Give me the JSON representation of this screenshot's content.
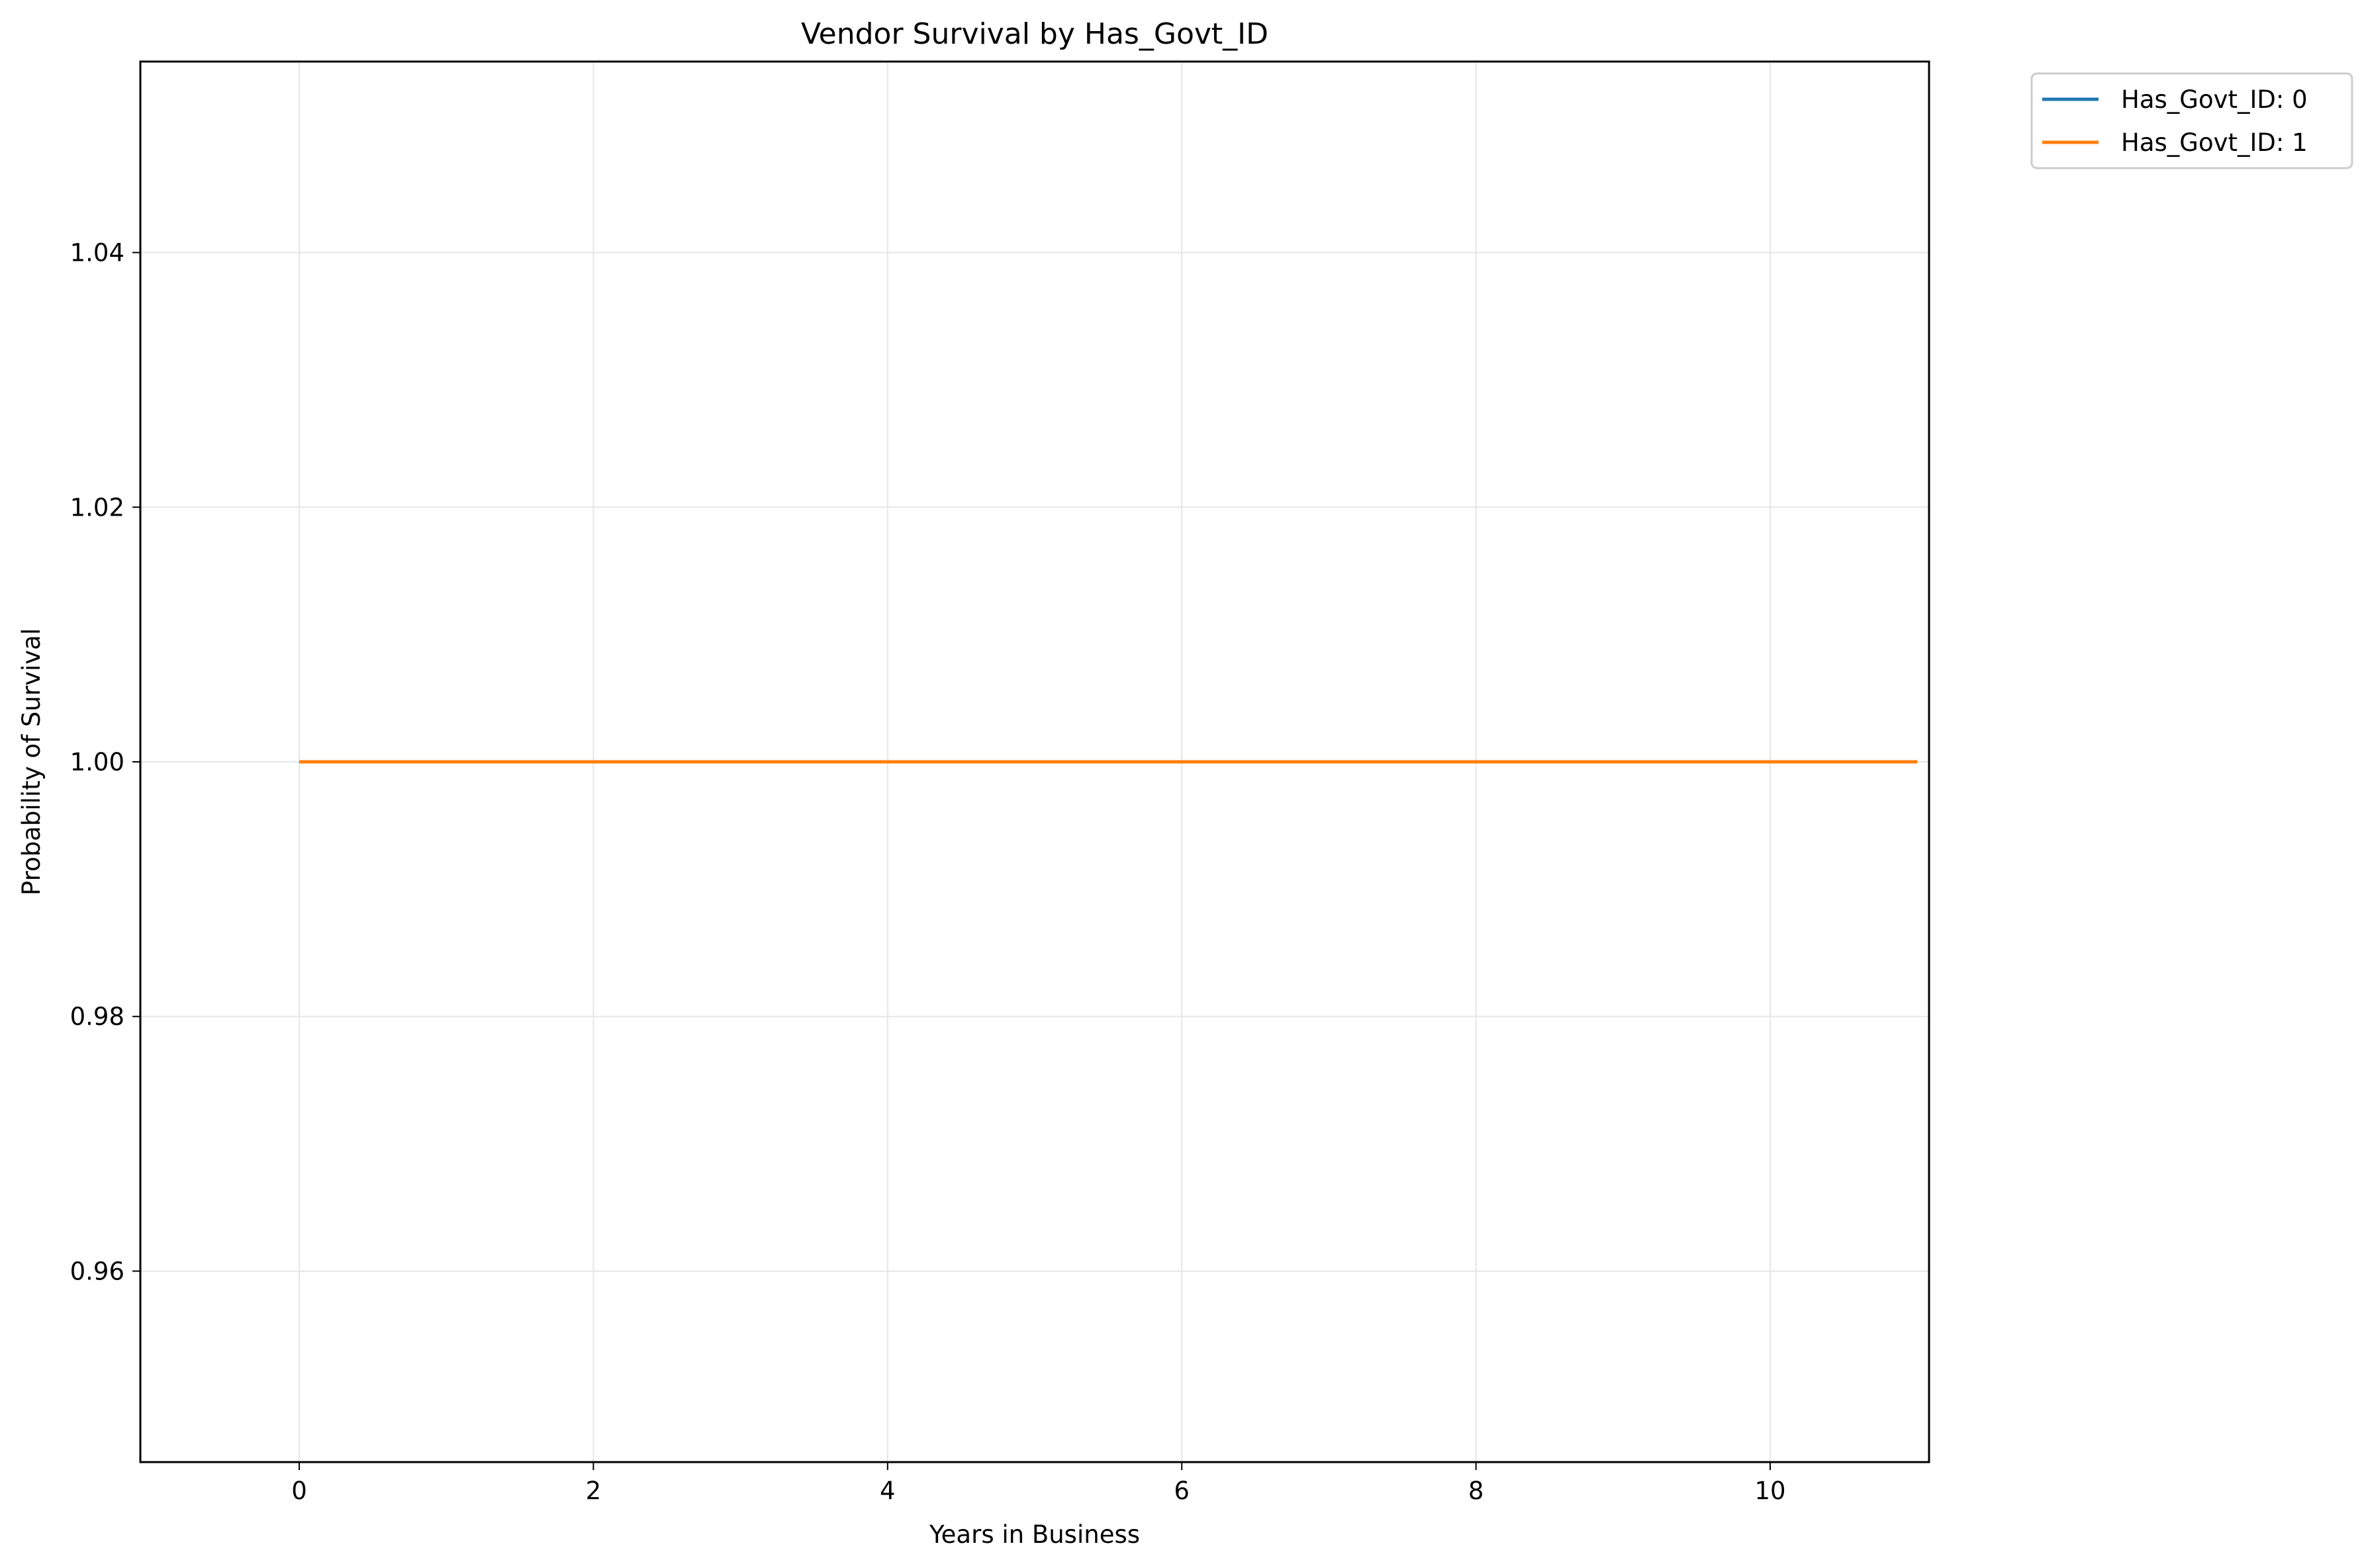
{
  "chart_data": {
    "type": "line",
    "title": "Vendor Survival by Has_Govt_ID",
    "xlabel": "Years in Business",
    "ylabel": "Probability of Survival",
    "xlim": [
      -1.08,
      11.08
    ],
    "ylim": [
      0.945,
      1.055
    ],
    "xticks": [
      0,
      2,
      4,
      6,
      8,
      10
    ],
    "xtick_labels": [
      "0",
      "2",
      "4",
      "6",
      "8",
      "10"
    ],
    "yticks": [
      0.96,
      0.98,
      1.0,
      1.02,
      1.04
    ],
    "ytick_labels": [
      "0.96",
      "0.98",
      "1.00",
      "1.02",
      "1.04"
    ],
    "grid": true,
    "legend_position": "outside-top-right",
    "series": [
      {
        "name": "Has_Govt_ID: 0",
        "color": "#1f77b4",
        "x": [
          0,
          11
        ],
        "y": [
          1.0,
          1.0
        ]
      },
      {
        "name": "Has_Govt_ID: 1",
        "color": "#ff7f0e",
        "x": [
          0,
          11
        ],
        "y": [
          1.0,
          1.0
        ]
      }
    ]
  }
}
